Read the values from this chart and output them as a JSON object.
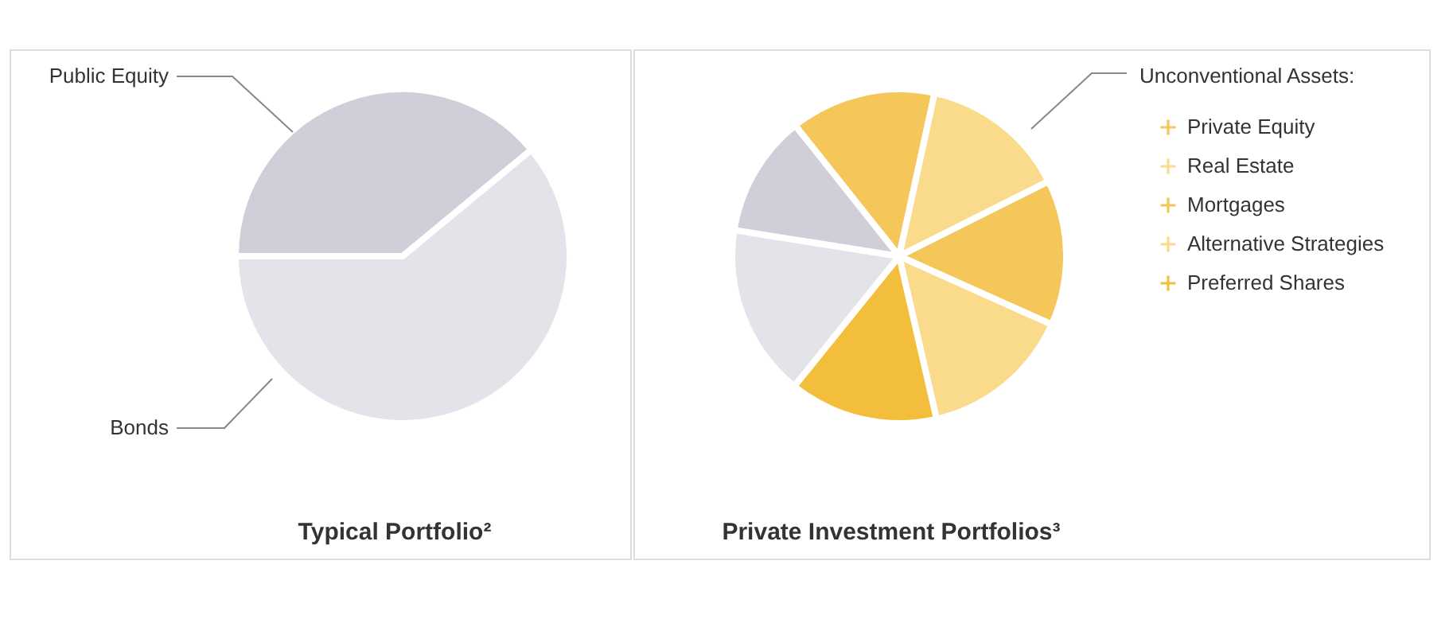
{
  "chart_data": [
    {
      "type": "pie",
      "title": "Typical Portfolio²",
      "categories": [
        "Public Equity",
        "Bonds"
      ],
      "values": [
        39,
        61
      ],
      "colors": [
        "#cfcfd9",
        "#e3e3ea"
      ],
      "legend": false
    },
    {
      "type": "pie",
      "title": "Private Investment Portfolios³",
      "legend_title": "Unconventional Assets:",
      "categories": [
        "Private Equity",
        "Real Estate",
        "Mortgages",
        "Alternative Strategies",
        "Preferred Shares",
        null,
        null
      ],
      "values": [
        14.1,
        14.2,
        14.1,
        14.7,
        14.4,
        16.7,
        11.8
      ],
      "colors": [
        "#f5c65a",
        "#fadb8c",
        "#f5c65a",
        "#fadb8c",
        "#f3be3c",
        "#e3e3ea",
        "#cfcfd9"
      ],
      "legend": "right"
    }
  ]
}
